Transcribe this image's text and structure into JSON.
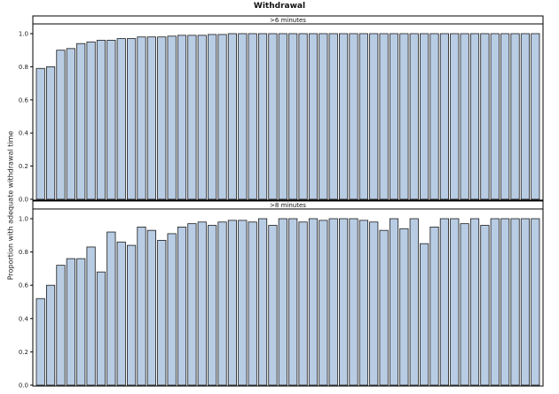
{
  "chart_data": {
    "type": "bar",
    "title": "Withdrawal",
    "ylabel": "Proportion with adequate withdrawal time",
    "xlabel": "",
    "ylim": [
      0,
      1
    ],
    "yticks": [
      "0.0",
      "0.2",
      "0.4",
      "0.6",
      "0.8",
      "1.0"
    ],
    "grid": false,
    "bar_color": "#b8cce4",
    "panels": [
      {
        "label": ">6 minutes",
        "values": [
          0.79,
          0.8,
          0.9,
          0.91,
          0.94,
          0.95,
          0.96,
          0.96,
          0.97,
          0.97,
          0.98,
          0.98,
          0.98,
          0.985,
          0.99,
          0.99,
          0.99,
          0.995,
          0.995,
          1.0,
          1.0,
          1.0,
          1.0,
          1.0,
          1.0,
          1.0,
          1.0,
          1.0,
          1.0,
          1.0,
          1.0,
          1.0,
          1.0,
          1.0,
          1.0,
          1.0,
          1.0,
          1.0,
          1.0,
          1.0,
          1.0,
          1.0,
          1.0,
          1.0,
          1.0,
          1.0,
          1.0,
          1.0,
          1.0,
          1.0
        ]
      },
      {
        "label": ">8 minutes",
        "values": [
          0.52,
          0.6,
          0.72,
          0.76,
          0.76,
          0.83,
          0.68,
          0.92,
          0.86,
          0.84,
          0.95,
          0.93,
          0.87,
          0.91,
          0.95,
          0.97,
          0.98,
          0.96,
          0.98,
          0.99,
          0.99,
          0.98,
          1.0,
          0.96,
          1.0,
          1.0,
          0.98,
          1.0,
          0.99,
          1.0,
          1.0,
          1.0,
          0.99,
          0.98,
          0.93,
          1.0,
          0.94,
          1.0,
          0.85,
          0.95,
          1.0,
          1.0,
          0.97,
          1.0,
          0.96,
          1.0,
          1.0,
          1.0,
          1.0,
          1.0
        ]
      }
    ]
  }
}
